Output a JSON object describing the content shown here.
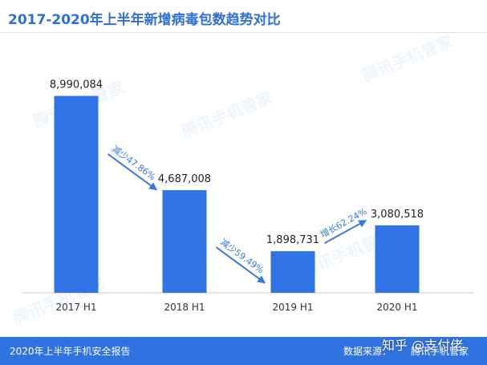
{
  "header": {
    "title": "2017-2020年上半年新增病毒包数趋势对比"
  },
  "chart_data": {
    "type": "bar",
    "categories": [
      "2017 H1",
      "2018 H1",
      "2019 H1",
      "2020 H1"
    ],
    "values": [
      8990084,
      4687008,
      1898731,
      3080518
    ],
    "value_labels": [
      "8,990,084",
      "4,687,008",
      "1,898,731",
      "3,080,518"
    ],
    "changes": [
      "减少47.86%",
      "减少59.49%",
      "增长62.24%"
    ],
    "ylim": [
      0,
      10000000
    ],
    "grid": false,
    "legend": "none",
    "bar_color": "#2f73e6"
  },
  "watermark": {
    "text": "腾讯手机管家"
  },
  "footer": {
    "report": "2020年上半年手机安全报告",
    "source": "数据来源：",
    "brand": "腾讯手机管家"
  },
  "overlay": {
    "text": "知乎 @支付佬"
  }
}
